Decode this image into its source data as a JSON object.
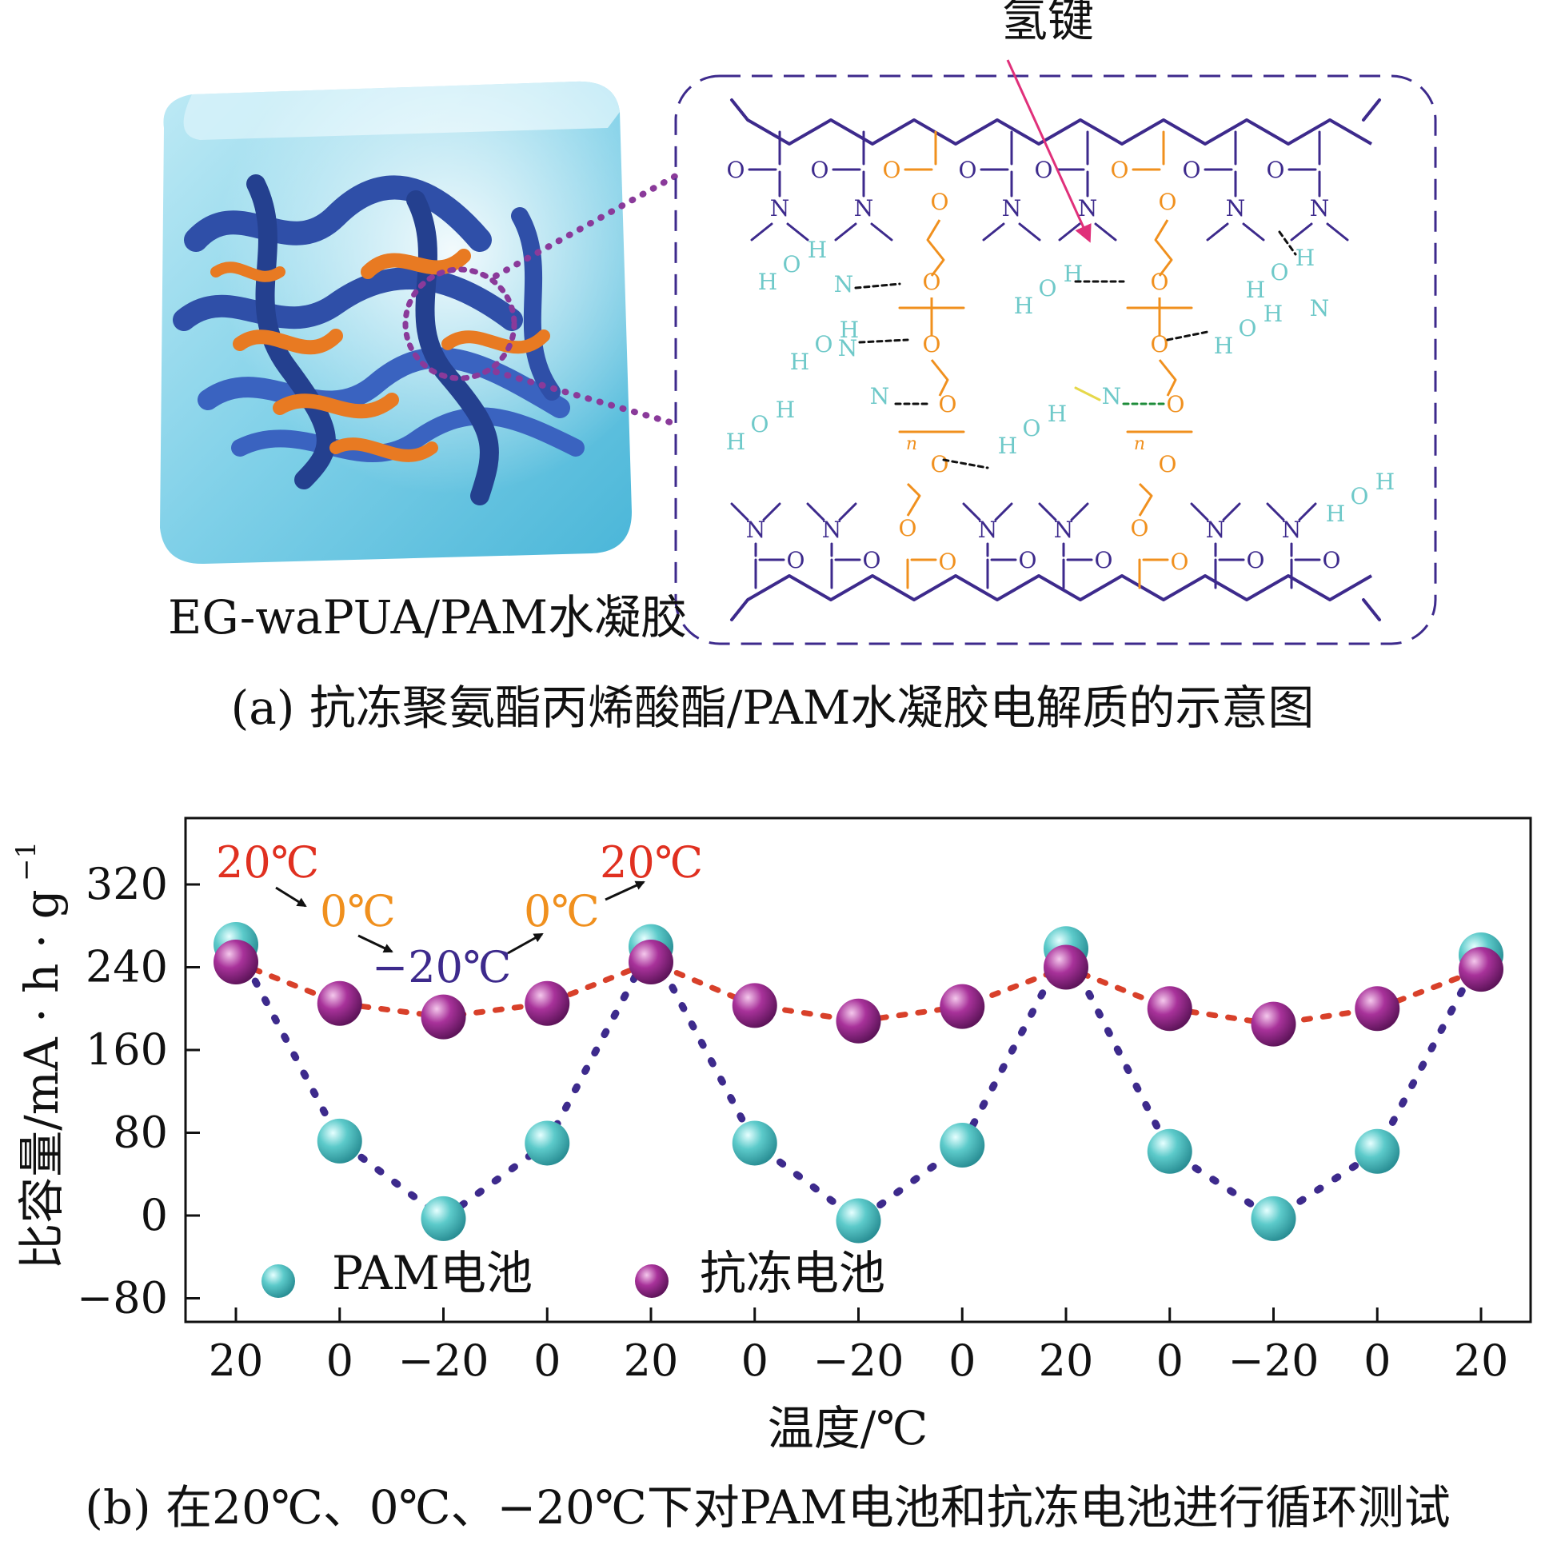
{
  "panel_a": {
    "material_label": "EG-waPUA/PAM水凝胶",
    "hbond_label": "氢键",
    "caption": "(a) 抗冻聚氨酯丙烯酸酯/PAM水凝胶电解质的示意图",
    "atoms": {
      "O": "O",
      "N": "N",
      "H": "H",
      "n": "n"
    }
  },
  "panel_b": {
    "caption": "(b) 在20℃、0℃、−20℃下对PAM电池和抗冻电池进行循环测试",
    "annotations": {
      "t20_left": "20℃",
      "t0_left": "0℃",
      "tm20": "−20℃",
      "t0_right": "0℃",
      "t20_right": "20℃"
    }
  },
  "colors": {
    "chain": "#3d2a8c",
    "peg": "#f0901e",
    "water": "#6fc9c9",
    "hbond_arrow": "#e0307a",
    "pam_marker": "#4fc0c0",
    "antifreeze_marker": "#9b2a8c",
    "red_text": "#e03020",
    "orange_text": "#f0901e",
    "purple_text": "#3d2a8c"
  },
  "chart_data": {
    "type": "scatter",
    "xlabel": "温度/℃",
    "ylabel": "比容量/mA · h · g",
    "ylabel_sup": "−1",
    "categories": [
      "20",
      "0",
      "−20",
      "0",
      "20",
      "0",
      "−20",
      "0",
      "20",
      "0",
      "−20",
      "0",
      "20"
    ],
    "ylim": [
      -100,
      400
    ],
    "yticks": [
      320,
      240,
      160,
      80,
      0,
      -80
    ],
    "ytick_labels": [
      "320",
      "240",
      "160",
      "80",
      "0",
      "−80"
    ],
    "grid": false,
    "legend_placement": "bottom-left",
    "series": [
      {
        "name": "PAM电池",
        "color": "#4fc0c0",
        "values": [
          262,
          72,
          -3,
          70,
          260,
          70,
          -5,
          68,
          258,
          62,
          -3,
          62,
          252
        ]
      },
      {
        "name": "抗冻电池",
        "color": "#9b2a8c",
        "values": [
          245,
          205,
          192,
          205,
          245,
          203,
          188,
          202,
          240,
          200,
          185,
          200,
          238
        ]
      }
    ]
  }
}
